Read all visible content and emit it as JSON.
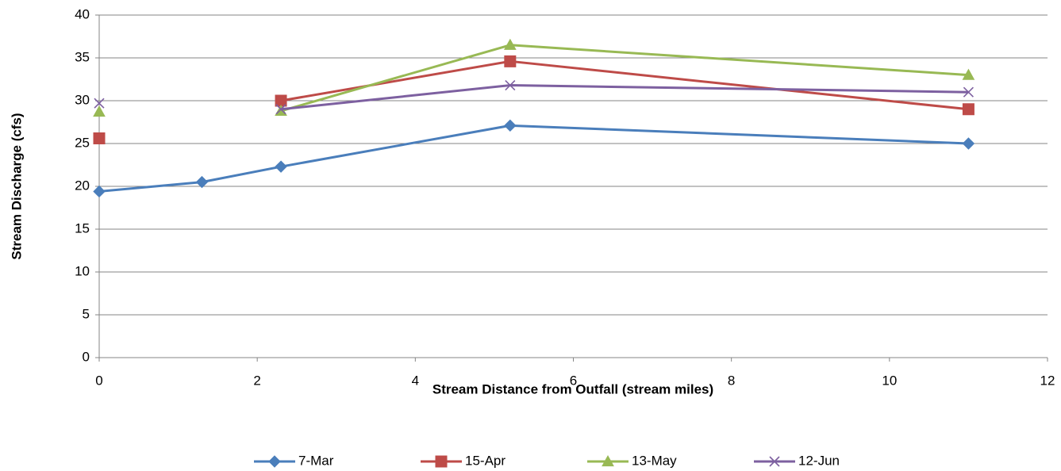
{
  "chart_data": {
    "type": "line",
    "x_label": "Stream Distance from Outfall (stream miles)",
    "y_label": "Stream Discharge (cfs)",
    "x": [
      0,
      1.3,
      2.3,
      5.2,
      11
    ],
    "series": [
      {
        "name": "7-Mar",
        "color": "#4a7ebb",
        "marker": "diamond",
        "values": [
          19.4,
          20.5,
          22.3,
          27.1,
          25.0
        ]
      },
      {
        "name": "15-Apr",
        "color": "#be4b48",
        "marker": "square",
        "values": [
          25.6,
          null,
          30.0,
          34.6,
          29.0
        ]
      },
      {
        "name": "13-May",
        "color": "#98b954",
        "marker": "triangle",
        "values": [
          28.7,
          null,
          28.8,
          36.5,
          33.0
        ]
      },
      {
        "name": "12-Jun",
        "color": "#7d60a0",
        "marker": "x",
        "values": [
          29.7,
          null,
          29.0,
          31.8,
          31.0
        ]
      }
    ],
    "xlim": [
      0,
      12
    ],
    "xticks": [
      0,
      2,
      4,
      6,
      8,
      10,
      12
    ],
    "ylim": [
      0,
      40
    ],
    "yticks": [
      0,
      5,
      10,
      15,
      20,
      25,
      30,
      35,
      40
    ],
    "grid": true,
    "legend": "bottom"
  }
}
